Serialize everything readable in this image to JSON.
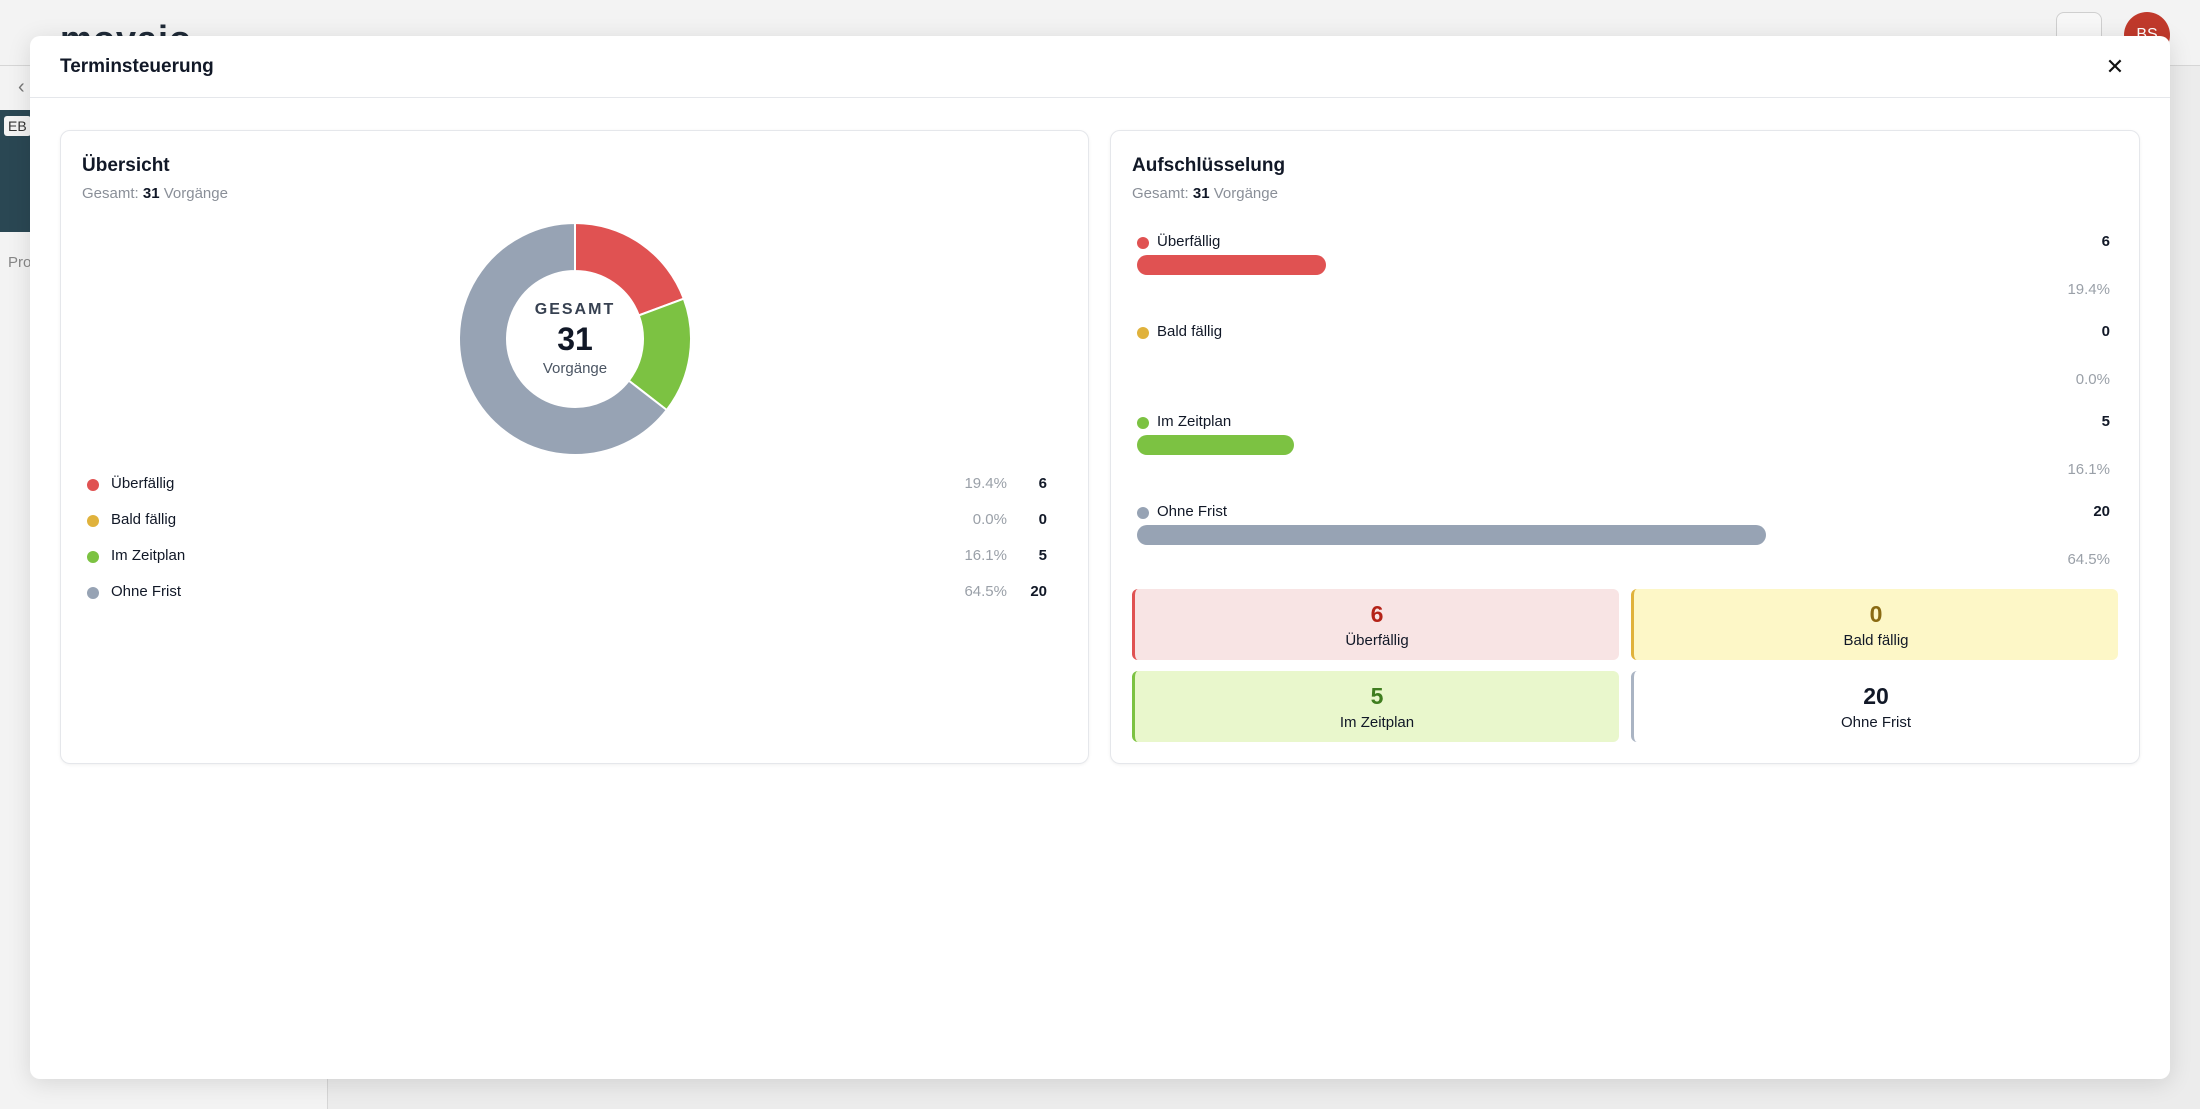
{
  "background": {
    "logo": "movaio",
    "avatar_initials": "BS",
    "tag": "EB",
    "back_icon": "chevron-left-icon",
    "sidebar_label": "Pro"
  },
  "modal": {
    "title": "Terminsteuerung",
    "close_icon": "close-icon"
  },
  "overview": {
    "title": "Übersicht",
    "total_prefix": "Gesamt:",
    "total_value": "31",
    "total_suffix": "Vorgänge",
    "center_label": "GESAMT",
    "center_value": "31",
    "center_unit": "Vorgänge"
  },
  "breakdown": {
    "title": "Aufschlüsselung",
    "total_prefix": "Gesamt:",
    "total_value": "31",
    "total_suffix": "Vorgänge"
  },
  "categories": [
    {
      "label": "Überfällig",
      "count": "6",
      "percent": "19.4%",
      "fraction": 0.194,
      "color": "#e05252",
      "tile_bg": "#f8e4e4",
      "tile_fg": "#b42318",
      "tile_border": "#e05252"
    },
    {
      "label": "Bald fällig",
      "count": "0",
      "percent": "0.0%",
      "fraction": 0.0,
      "color": "#e0b23c",
      "tile_bg": "#fdf7c7",
      "tile_fg": "#8a6a12",
      "tile_border": "#e0b23c"
    },
    {
      "label": "Im Zeitplan",
      "count": "5",
      "percent": "16.1%",
      "fraction": 0.161,
      "color": "#7cc242",
      "tile_bg": "#e9f7cc",
      "tile_fg": "#3f7d1f",
      "tile_border": "#7cc242"
    },
    {
      "label": "Ohne Frist",
      "count": "20",
      "percent": "64.5%",
      "fraction": 0.645,
      "color": "#97a3b4",
      "tile_bg": "#ffffff",
      "tile_fg": "#111827",
      "tile_border": "#aab4c3"
    }
  ],
  "chart_data": {
    "type": "pie",
    "categories": [
      "Überfällig",
      "Bald fällig",
      "Im Zeitplan",
      "Ohne Frist"
    ],
    "values": [
      6,
      0,
      5,
      20
    ],
    "colors": [
      "#e05252",
      "#e0b23c",
      "#7cc242",
      "#97a3b4"
    ],
    "donut": true
  }
}
